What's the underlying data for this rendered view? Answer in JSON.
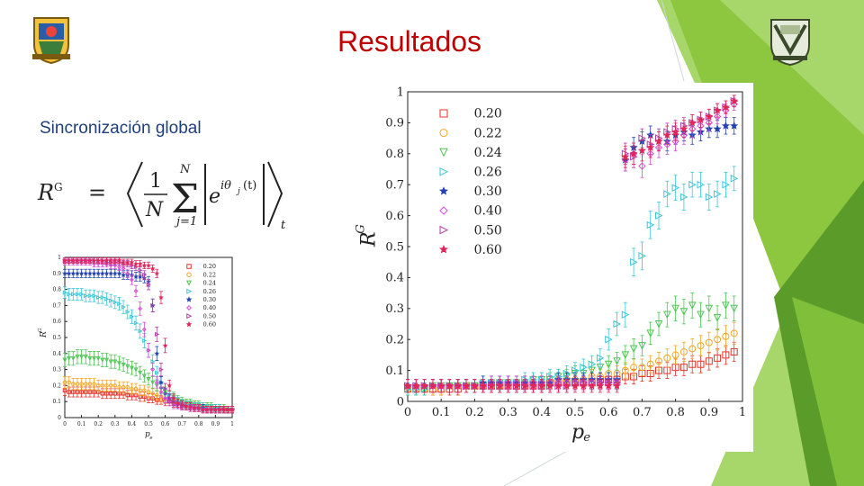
{
  "slide": {
    "title": "Resultados",
    "subtitle": "Sincronización global",
    "formula": {
      "lhs": "R",
      "lhs_sup": "G",
      "equals": "=",
      "frac_num": "1",
      "frac_den": "N",
      "sum_upper": "N",
      "sum_lower": "j=1",
      "term_base": "e",
      "term_exp": "iθ",
      "term_exp_sub": "j",
      "term_exp_tail": "(t)",
      "outer_sub": "t"
    },
    "logos": {
      "left": "university-crest",
      "right": "unam-crest"
    },
    "colors": {
      "title": "#c00000",
      "subtitle": "#1f3f7a",
      "accent_green": "#8dc63f",
      "accent_dark_green": "#5a9b2a"
    }
  },
  "chart_data": [
    {
      "type": "scatter",
      "title": "",
      "xlabel": "p",
      "xlabel_sub": "e",
      "ylabel": "R",
      "ylabel_sup": "G",
      "xlim": [
        0,
        1
      ],
      "ylim": [
        0,
        1
      ],
      "xticks": [
        "0",
        "0.1",
        "0.2",
        "0.3",
        "0.4",
        "0.5",
        "0.6",
        "0.7",
        "0.8",
        "0.9",
        "1"
      ],
      "yticks": [
        "0",
        "0.1",
        "0.2",
        "0.3",
        "0.4",
        "0.5",
        "0.6",
        "0.7",
        "0.8",
        "0.9",
        "1"
      ],
      "legend_position": "top-right",
      "grid": false,
      "x": [
        0,
        0.025,
        0.05,
        0.075,
        0.1,
        0.125,
        0.15,
        0.175,
        0.2,
        0.225,
        0.25,
        0.275,
        0.3,
        0.325,
        0.35,
        0.375,
        0.4,
        0.425,
        0.45,
        0.475,
        0.5,
        0.525,
        0.55,
        0.575,
        0.6,
        0.625,
        0.65,
        0.675,
        0.7,
        0.725,
        0.75,
        0.775,
        0.8,
        0.825,
        0.85,
        0.875,
        0.9,
        0.925,
        0.95,
        0.975,
        1.0
      ],
      "series": [
        {
          "name": "0.20",
          "marker": "square",
          "color": "#e8332b",
          "values": [
            0.17,
            0.16,
            0.16,
            0.16,
            0.16,
            0.16,
            0.16,
            0.16,
            0.16,
            0.15,
            0.15,
            0.15,
            0.15,
            0.15,
            0.15,
            0.14,
            0.14,
            0.14,
            0.13,
            0.13,
            0.12,
            0.12,
            0.11,
            0.11,
            0.1,
            0.1,
            0.09,
            0.09,
            0.08,
            0.08,
            0.08,
            0.07,
            0.07,
            0.07,
            0.06,
            0.06,
            0.06,
            0.06,
            0.05,
            0.05,
            0.05
          ]
        },
        {
          "name": "0.22",
          "marker": "circle",
          "color": "#f5a623",
          "values": [
            0.22,
            0.22,
            0.21,
            0.21,
            0.21,
            0.21,
            0.21,
            0.21,
            0.2,
            0.2,
            0.2,
            0.2,
            0.2,
            0.19,
            0.19,
            0.19,
            0.18,
            0.18,
            0.17,
            0.17,
            0.16,
            0.15,
            0.14,
            0.13,
            0.12,
            0.12,
            0.11,
            0.1,
            0.09,
            0.09,
            0.08,
            0.08,
            0.07,
            0.07,
            0.07,
            0.06,
            0.06,
            0.06,
            0.05,
            0.05,
            0.05
          ]
        },
        {
          "name": "0.24",
          "marker": "triangle-down",
          "color": "#4cc552",
          "values": [
            0.36,
            0.37,
            0.37,
            0.38,
            0.38,
            0.38,
            0.37,
            0.37,
            0.37,
            0.36,
            0.36,
            0.35,
            0.35,
            0.34,
            0.33,
            0.32,
            0.31,
            0.3,
            0.28,
            0.26,
            0.24,
            0.22,
            0.2,
            0.18,
            0.16,
            0.14,
            0.13,
            0.11,
            0.1,
            0.09,
            0.09,
            0.08,
            0.08,
            0.07,
            0.07,
            0.07,
            0.06,
            0.06,
            0.06,
            0.05,
            0.05
          ]
        },
        {
          "name": "0.26",
          "marker": "triangle-right",
          "color": "#3cc7d8",
          "values": [
            0.78,
            0.77,
            0.77,
            0.77,
            0.77,
            0.76,
            0.76,
            0.76,
            0.75,
            0.75,
            0.74,
            0.73,
            0.72,
            0.71,
            0.69,
            0.66,
            0.63,
            0.59,
            0.54,
            0.48,
            0.42,
            0.35,
            0.28,
            0.22,
            0.18,
            0.14,
            0.12,
            0.1,
            0.09,
            0.08,
            0.08,
            0.07,
            0.07,
            0.07,
            0.06,
            0.06,
            0.06,
            0.06,
            0.05,
            0.05,
            0.05
          ]
        },
        {
          "name": "0.30",
          "marker": "star",
          "color": "#2342b0",
          "values": [
            0.9,
            0.9,
            0.9,
            0.9,
            0.9,
            0.9,
            0.9,
            0.9,
            0.9,
            0.9,
            0.9,
            0.9,
            0.9,
            0.9,
            0.89,
            0.89,
            0.89,
            0.88,
            0.88,
            0.87,
            0.85,
            0.7,
            0.4,
            0.22,
            0.15,
            0.12,
            0.1,
            0.09,
            0.08,
            0.07,
            0.07,
            0.06,
            0.06,
            0.06,
            0.05,
            0.05,
            0.05,
            0.05,
            0.05,
            0.05,
            0.05
          ]
        },
        {
          "name": "0.40",
          "marker": "diamond",
          "color": "#d94bd6",
          "values": [
            0.97,
            0.97,
            0.97,
            0.97,
            0.97,
            0.97,
            0.97,
            0.96,
            0.96,
            0.96,
            0.96,
            0.95,
            0.95,
            0.94,
            0.93,
            0.9,
            0.86,
            0.79,
            0.68,
            0.55,
            0.42,
            0.3,
            0.22,
            0.16,
            0.12,
            0.1,
            0.08,
            0.08,
            0.07,
            0.07,
            0.06,
            0.06,
            0.06,
            0.05,
            0.05,
            0.05,
            0.05,
            0.05,
            0.05,
            0.05,
            0.05
          ]
        },
        {
          "name": "0.50",
          "marker": "triangle-right",
          "color": "#b23da8",
          "values": [
            0.98,
            0.98,
            0.98,
            0.98,
            0.98,
            0.98,
            0.98,
            0.98,
            0.98,
            0.98,
            0.97,
            0.97,
            0.97,
            0.97,
            0.96,
            0.96,
            0.95,
            0.94,
            0.92,
            0.89,
            0.83,
            0.7,
            0.52,
            0.3,
            0.18,
            0.12,
            0.1,
            0.08,
            0.07,
            0.07,
            0.06,
            0.06,
            0.06,
            0.05,
            0.05,
            0.05,
            0.05,
            0.05,
            0.05,
            0.05,
            0.05
          ]
        },
        {
          "name": "0.60",
          "marker": "star",
          "color": "#e0265b",
          "values": [
            0.98,
            0.98,
            0.98,
            0.98,
            0.98,
            0.98,
            0.98,
            0.98,
            0.98,
            0.98,
            0.98,
            0.98,
            0.98,
            0.98,
            0.97,
            0.97,
            0.97,
            0.96,
            0.96,
            0.95,
            0.95,
            0.93,
            0.9,
            0.75,
            0.45,
            0.2,
            0.12,
            0.09,
            0.08,
            0.07,
            0.07,
            0.06,
            0.06,
            0.05,
            0.05,
            0.05,
            0.05,
            0.05,
            0.05,
            0.05,
            0.05
          ]
        }
      ]
    },
    {
      "type": "scatter",
      "title": "",
      "xlabel": "p",
      "xlabel_sub": "e",
      "ylabel": "R",
      "ylabel_sup": "G",
      "xlim": [
        0,
        1
      ],
      "ylim": [
        0,
        1
      ],
      "xticks": [
        "0",
        "0.1",
        "0.2",
        "0.3",
        "0.4",
        "0.5",
        "0.6",
        "0.7",
        "0.8",
        "0.9",
        "1"
      ],
      "yticks": [
        "0",
        "0.1",
        "0.2",
        "0.3",
        "0.4",
        "0.5",
        "0.6",
        "0.7",
        "0.8",
        "0.9",
        "1"
      ],
      "legend_position": "top-left",
      "grid": false,
      "x": [
        0,
        0.025,
        0.05,
        0.075,
        0.1,
        0.125,
        0.15,
        0.175,
        0.2,
        0.225,
        0.25,
        0.275,
        0.3,
        0.325,
        0.35,
        0.375,
        0.4,
        0.425,
        0.45,
        0.475,
        0.5,
        0.525,
        0.55,
        0.575,
        0.6,
        0.625,
        0.65,
        0.675,
        0.7,
        0.725,
        0.75,
        0.775,
        0.8,
        0.825,
        0.85,
        0.875,
        0.9,
        0.925,
        0.95,
        0.975
      ],
      "series": [
        {
          "name": "0.20",
          "marker": "square",
          "color": "#e8332b",
          "values": [
            0.04,
            0.04,
            0.04,
            0.04,
            0.04,
            0.04,
            0.04,
            0.05,
            0.05,
            0.05,
            0.05,
            0.05,
            0.05,
            0.05,
            0.05,
            0.05,
            0.05,
            0.06,
            0.06,
            0.06,
            0.06,
            0.06,
            0.06,
            0.07,
            0.07,
            0.07,
            0.08,
            0.08,
            0.09,
            0.09,
            0.1,
            0.1,
            0.11,
            0.11,
            0.12,
            0.12,
            0.13,
            0.14,
            0.15,
            0.16
          ]
        },
        {
          "name": "0.22",
          "marker": "circle",
          "color": "#f5a623",
          "values": [
            0.04,
            0.04,
            0.04,
            0.04,
            0.04,
            0.05,
            0.05,
            0.05,
            0.05,
            0.05,
            0.05,
            0.05,
            0.05,
            0.06,
            0.06,
            0.06,
            0.06,
            0.06,
            0.07,
            0.07,
            0.07,
            0.07,
            0.08,
            0.08,
            0.09,
            0.09,
            0.1,
            0.11,
            0.11,
            0.12,
            0.13,
            0.14,
            0.15,
            0.16,
            0.17,
            0.18,
            0.19,
            0.2,
            0.21,
            0.22
          ]
        },
        {
          "name": "0.24",
          "marker": "triangle-down",
          "color": "#4cc552",
          "values": [
            0.04,
            0.04,
            0.04,
            0.05,
            0.05,
            0.05,
            0.05,
            0.05,
            0.05,
            0.05,
            0.06,
            0.06,
            0.06,
            0.06,
            0.06,
            0.07,
            0.07,
            0.07,
            0.08,
            0.08,
            0.09,
            0.09,
            0.1,
            0.11,
            0.12,
            0.13,
            0.15,
            0.17,
            0.18,
            0.22,
            0.25,
            0.28,
            0.3,
            0.29,
            0.31,
            0.28,
            0.3,
            0.27,
            0.31,
            0.3
          ]
        },
        {
          "name": "0.26",
          "marker": "triangle-right",
          "color": "#3cc7d8",
          "values": [
            0.04,
            0.04,
            0.04,
            0.05,
            0.05,
            0.05,
            0.05,
            0.05,
            0.05,
            0.06,
            0.06,
            0.06,
            0.06,
            0.06,
            0.07,
            0.07,
            0.07,
            0.08,
            0.08,
            0.09,
            0.1,
            0.11,
            0.12,
            0.14,
            0.2,
            0.25,
            0.28,
            0.45,
            0.47,
            0.57,
            0.6,
            0.67,
            0.69,
            0.66,
            0.7,
            0.7,
            0.66,
            0.67,
            0.7,
            0.72
          ]
        },
        {
          "name": "0.30",
          "marker": "star",
          "color": "#2342b0",
          "values": [
            0.05,
            0.05,
            0.05,
            0.05,
            0.05,
            0.05,
            0.05,
            0.05,
            0.05,
            0.06,
            0.06,
            0.06,
            0.06,
            0.06,
            0.06,
            0.06,
            0.06,
            0.06,
            0.07,
            0.07,
            0.07,
            0.07,
            0.07,
            0.07,
            0.07,
            0.07,
            0.78,
            0.82,
            0.84,
            0.86,
            0.84,
            0.84,
            0.86,
            0.87,
            0.86,
            0.87,
            0.88,
            0.88,
            0.89,
            0.89
          ]
        },
        {
          "name": "0.40",
          "marker": "diamond",
          "color": "#d94bd6",
          "values": [
            0.05,
            0.05,
            0.05,
            0.05,
            0.05,
            0.05,
            0.05,
            0.05,
            0.05,
            0.05,
            0.06,
            0.06,
            0.06,
            0.06,
            0.06,
            0.06,
            0.06,
            0.06,
            0.06,
            0.06,
            0.06,
            0.06,
            0.06,
            0.06,
            0.06,
            0.06,
            0.78,
            0.8,
            0.76,
            0.8,
            0.82,
            0.83,
            0.84,
            0.86,
            0.88,
            0.89,
            0.9,
            0.92,
            0.94,
            0.96
          ]
        },
        {
          "name": "0.50",
          "marker": "triangle-right",
          "color": "#b23da8",
          "values": [
            0.05,
            0.05,
            0.05,
            0.05,
            0.05,
            0.05,
            0.05,
            0.05,
            0.05,
            0.05,
            0.05,
            0.05,
            0.05,
            0.05,
            0.05,
            0.05,
            0.05,
            0.05,
            0.05,
            0.05,
            0.06,
            0.06,
            0.06,
            0.06,
            0.06,
            0.06,
            0.8,
            0.79,
            0.85,
            0.83,
            0.85,
            0.87,
            0.88,
            0.89,
            0.9,
            0.91,
            0.92,
            0.94,
            0.95,
            0.97
          ]
        },
        {
          "name": "0.60",
          "marker": "star",
          "color": "#e0265b",
          "values": [
            0.05,
            0.05,
            0.05,
            0.05,
            0.05,
            0.05,
            0.05,
            0.05,
            0.05,
            0.05,
            0.05,
            0.05,
            0.05,
            0.05,
            0.05,
            0.05,
            0.05,
            0.05,
            0.05,
            0.05,
            0.05,
            0.05,
            0.05,
            0.05,
            0.05,
            0.05,
            0.79,
            0.8,
            0.81,
            0.82,
            0.84,
            0.86,
            0.87,
            0.88,
            0.9,
            0.91,
            0.92,
            0.94,
            0.95,
            0.97
          ]
        }
      ]
    }
  ]
}
